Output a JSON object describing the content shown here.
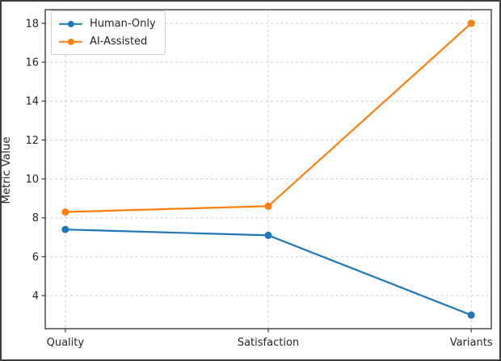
{
  "chart_data": {
    "type": "line",
    "title": "",
    "xlabel": "",
    "ylabel": "Metric Value",
    "categories": [
      "Quality",
      "Satisfaction",
      "Variants"
    ],
    "series": [
      {
        "name": "Human-Only",
        "values": [
          7.4,
          7.1,
          3.0
        ],
        "color": "#1f77b4",
        "marker": "circle"
      },
      {
        "name": "AI-Assisted",
        "values": [
          8.3,
          8.6,
          18.0
        ],
        "color": "#ff7f0e",
        "marker": "circle"
      }
    ],
    "yticks": [
      4,
      6,
      8,
      10,
      12,
      14,
      16,
      18
    ],
    "ylim": [
      2.3,
      18.7
    ],
    "grid": true,
    "grid_style": "dashed",
    "legend": {
      "position": "upper-left"
    },
    "style": {
      "axis_color": "#3a3a3a",
      "grid_color": "#cccccc",
      "text_color": "#262626",
      "legend_border_color": "#cccccc",
      "figure_border_color": "#3e3e3e",
      "background": "#ffffff"
    }
  }
}
